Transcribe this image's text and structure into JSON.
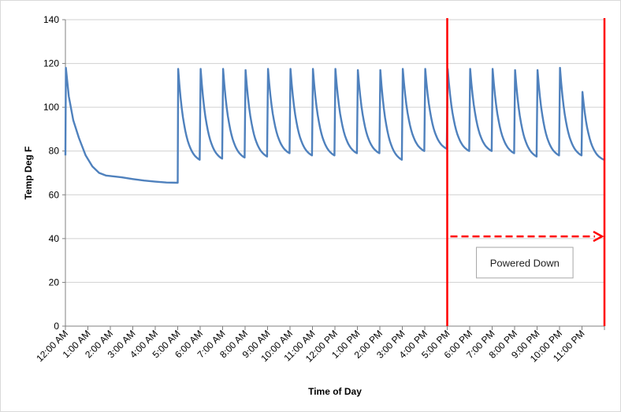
{
  "chart_data": {
    "type": "line",
    "title": "",
    "xlabel": "Time of Day",
    "ylabel": "Temp Deg F",
    "xlim": [
      0,
      24
    ],
    "ylim": [
      0,
      140
    ],
    "y_ticks": [
      0,
      20,
      40,
      60,
      80,
      100,
      120,
      140
    ],
    "x_tick_labels": [
      "12:00 AM",
      "1:00 AM",
      "2:00 AM",
      "3:00 AM",
      "4:00 AM",
      "5:00 AM",
      "6:00 AM",
      "7:00 AM",
      "8:00 AM",
      "9:00 AM",
      "10:00 AM",
      "11:00 AM",
      "12:00 PM",
      "1:00 PM",
      "2:00 PM",
      "3:00 PM",
      "4:00 PM",
      "5:00 PM",
      "6:00 PM",
      "7:00 PM",
      "8:00 PM",
      "9:00 PM",
      "10:00 PM",
      "11:00 PM"
    ],
    "grid": "horizontal",
    "line_color": "#4f81bd",
    "marker_color": "#ff0000",
    "series": [
      {
        "name": "",
        "initial_point": [
          0,
          78
        ],
        "decay_segments": [
          {
            "t0": 0.02,
            "peak": 118,
            "t1": 5.0,
            "base_curve": "overnight_cooldown"
          },
          {
            "t0": 5.0,
            "peak": 117.5,
            "t1": 6.0,
            "end": 76
          },
          {
            "t0": 6.0,
            "peak": 117.5,
            "t1": 7.0,
            "end": 76.5
          },
          {
            "t0": 7.0,
            "peak": 117.5,
            "t1": 8.0,
            "end": 77
          },
          {
            "t0": 8.0,
            "peak": 117,
            "t1": 9.0,
            "end": 77.5
          },
          {
            "t0": 9.0,
            "peak": 117.5,
            "t1": 10.0,
            "end": 79
          },
          {
            "t0": 10.0,
            "peak": 117.5,
            "t1": 11.0,
            "end": 78
          },
          {
            "t0": 11.0,
            "peak": 117.5,
            "t1": 12.0,
            "end": 78
          },
          {
            "t0": 12.0,
            "peak": 117.5,
            "t1": 13.0,
            "end": 79
          },
          {
            "t0": 13.0,
            "peak": 117,
            "t1": 14.0,
            "end": 79
          },
          {
            "t0": 14.0,
            "peak": 117,
            "t1": 15.0,
            "end": 76
          },
          {
            "t0": 15.0,
            "peak": 117.5,
            "t1": 16.0,
            "end": 80
          },
          {
            "t0": 16.0,
            "peak": 117.5,
            "t1": 17.0,
            "end": 81
          },
          {
            "t0": 17.0,
            "peak": 117.5,
            "t1": 18.0,
            "end": 80
          },
          {
            "t0": 18.0,
            "peak": 117.5,
            "t1": 19.0,
            "end": 80
          },
          {
            "t0": 19.0,
            "peak": 117.5,
            "t1": 20.0,
            "end": 79
          },
          {
            "t0": 20.0,
            "peak": 117,
            "t1": 21.0,
            "end": 77.5
          },
          {
            "t0": 21.0,
            "peak": 117,
            "t1": 22.0,
            "end": 78
          },
          {
            "t0": 22.0,
            "peak": 118,
            "t1": 23.0,
            "end": 78
          },
          {
            "t0": 23.0,
            "peak": 107,
            "t1": 24.0,
            "end": 76
          }
        ],
        "overnight_cooldown_points": [
          [
            0.02,
            118
          ],
          [
            0.15,
            105
          ],
          [
            0.35,
            94
          ],
          [
            0.6,
            86
          ],
          [
            0.9,
            78
          ],
          [
            1.2,
            73
          ],
          [
            1.5,
            70
          ],
          [
            1.8,
            68.8
          ],
          [
            2.0,
            68.6
          ],
          [
            2.5,
            68
          ],
          [
            3.0,
            67.2
          ],
          [
            3.5,
            66.5
          ],
          [
            4.0,
            66
          ],
          [
            4.5,
            65.6
          ],
          [
            5.0,
            65.5
          ]
        ]
      }
    ],
    "annotations": {
      "powered_down_start_x": 17,
      "powered_down_end_x": 24,
      "arrow_y": 41,
      "box_label": "Powered Down"
    }
  }
}
